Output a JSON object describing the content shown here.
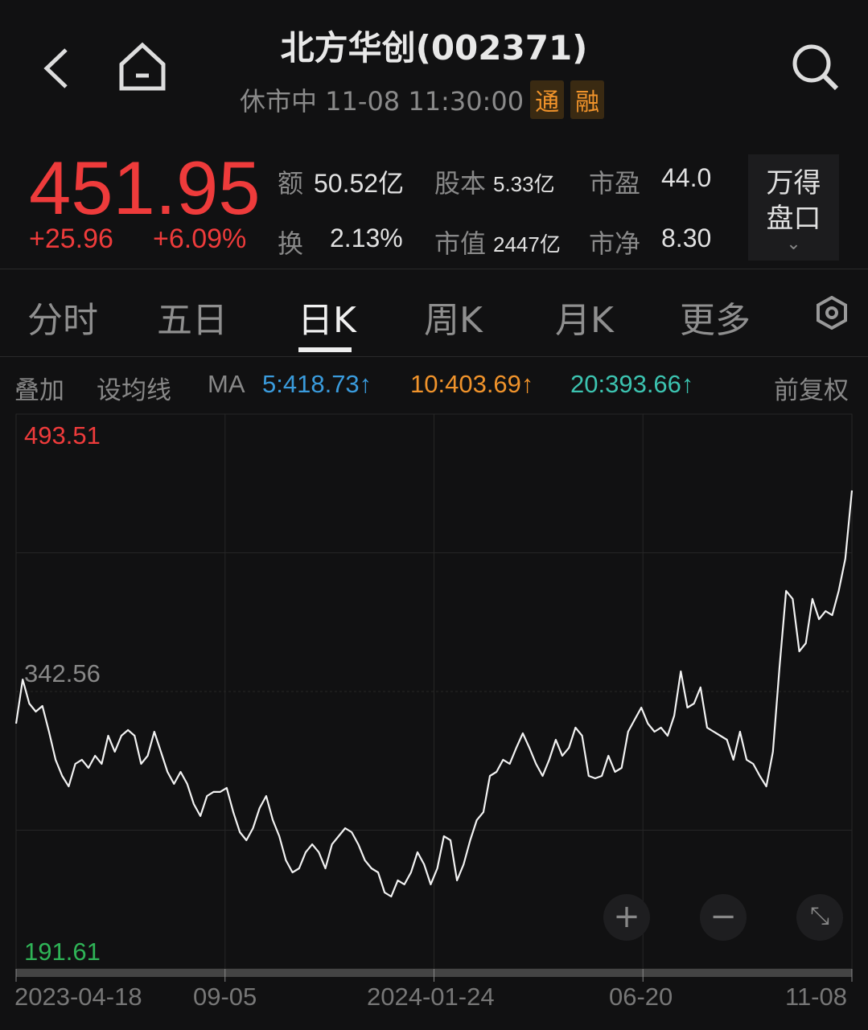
{
  "header": {
    "title": "北方华创(002371)",
    "status": "休市中 11-08 11:30:00",
    "tags": [
      "通",
      "融"
    ]
  },
  "quote": {
    "price": "451.95",
    "change": "+25.96",
    "change_pct": "+6.09%",
    "stats": [
      {
        "label": "额",
        "value": "50.52亿"
      },
      {
        "label": "股本",
        "value": "5.33亿"
      },
      {
        "label": "市盈",
        "value": "44.0"
      },
      {
        "label": "换",
        "value": "2.13%"
      },
      {
        "label": "市值",
        "value": "2447亿"
      },
      {
        "label": "市净",
        "value": "8.30"
      }
    ],
    "panel_button": "万得盘口"
  },
  "tabs": [
    "分时",
    "五日",
    "日K",
    "周K",
    "月K",
    "更多"
  ],
  "active_tab": "日K",
  "toolbar": {
    "overlay": "叠加",
    "set_ma": "设均线",
    "ma": "MA",
    "ma5": "5:418.73↑",
    "ma10": "10:403.69↑",
    "ma20": "20:393.66↑",
    "adjust": "前复权"
  },
  "colors": {
    "up": "#ee3b3b",
    "down": "#2fb457",
    "ma5": "#3a9bdc",
    "ma10": "#f0932b",
    "ma20": "#3cc3b0"
  },
  "icons": [
    "back-icon",
    "home-icon",
    "search-icon",
    "settings-icon",
    "zoom-in-icon",
    "zoom-out-icon",
    "fullscreen-icon"
  ],
  "chart_data": {
    "type": "line",
    "x_ticks": [
      "2023-04-18",
      "09-05",
      "2024-01-24",
      "06-20",
      "11-08"
    ],
    "ylim": [
      191.61,
      493.51
    ],
    "y_labels": [
      "493.51",
      "342.56",
      "191.61"
    ],
    "grid": true,
    "values": [
      325.1,
      349.1,
      336.0,
      331.6,
      334.7,
      320.7,
      305.4,
      296.6,
      290.9,
      303.2,
      305.4,
      301.0,
      307.6,
      303.2,
      318.5,
      309.8,
      318.5,
      321.6,
      318.5,
      303.2,
      307.6,
      320.7,
      309.8,
      298.8,
      292.3,
      298.8,
      292.3,
      281.3,
      274.8,
      285.7,
      287.9,
      287.9,
      290.1,
      276.9,
      266.0,
      261.6,
      268.2,
      279.1,
      285.7,
      272.6,
      263.8,
      250.7,
      244.1,
      246.3,
      255.1,
      259.4,
      255.1,
      246.3,
      259.4,
      263.8,
      268.2,
      266.0,
      259.4,
      250.7,
      246.3,
      244.1,
      233.2,
      231.0,
      239.8,
      237.6,
      244.1,
      255.1,
      248.5,
      237.6,
      246.3,
      263.8,
      261.6,
      239.8,
      248.5,
      261.6,
      272.6,
      276.9,
      296.6,
      298.8,
      305.4,
      303.2,
      311.9,
      319.8,
      311.9,
      303.2,
      296.6,
      305.4,
      316.3,
      307.6,
      311.9,
      322.9,
      318.5,
      296.6,
      295.3,
      296.6,
      307.6,
      298.8,
      301.0,
      320.7,
      327.3,
      333.8,
      325.1,
      320.7,
      322.9,
      318.5,
      329.4,
      353.5,
      333.8,
      336.0,
      344.8,
      322.9,
      320.7,
      318.5,
      316.3,
      305.4,
      320.7,
      305.4,
      303.2,
      296.6,
      290.9,
      309.8,
      355.7,
      397.3,
      392.9,
      364.4,
      368.8,
      392.9,
      381.9,
      386.3,
      384.1,
      397.3,
      414.8,
      451.95
    ]
  }
}
